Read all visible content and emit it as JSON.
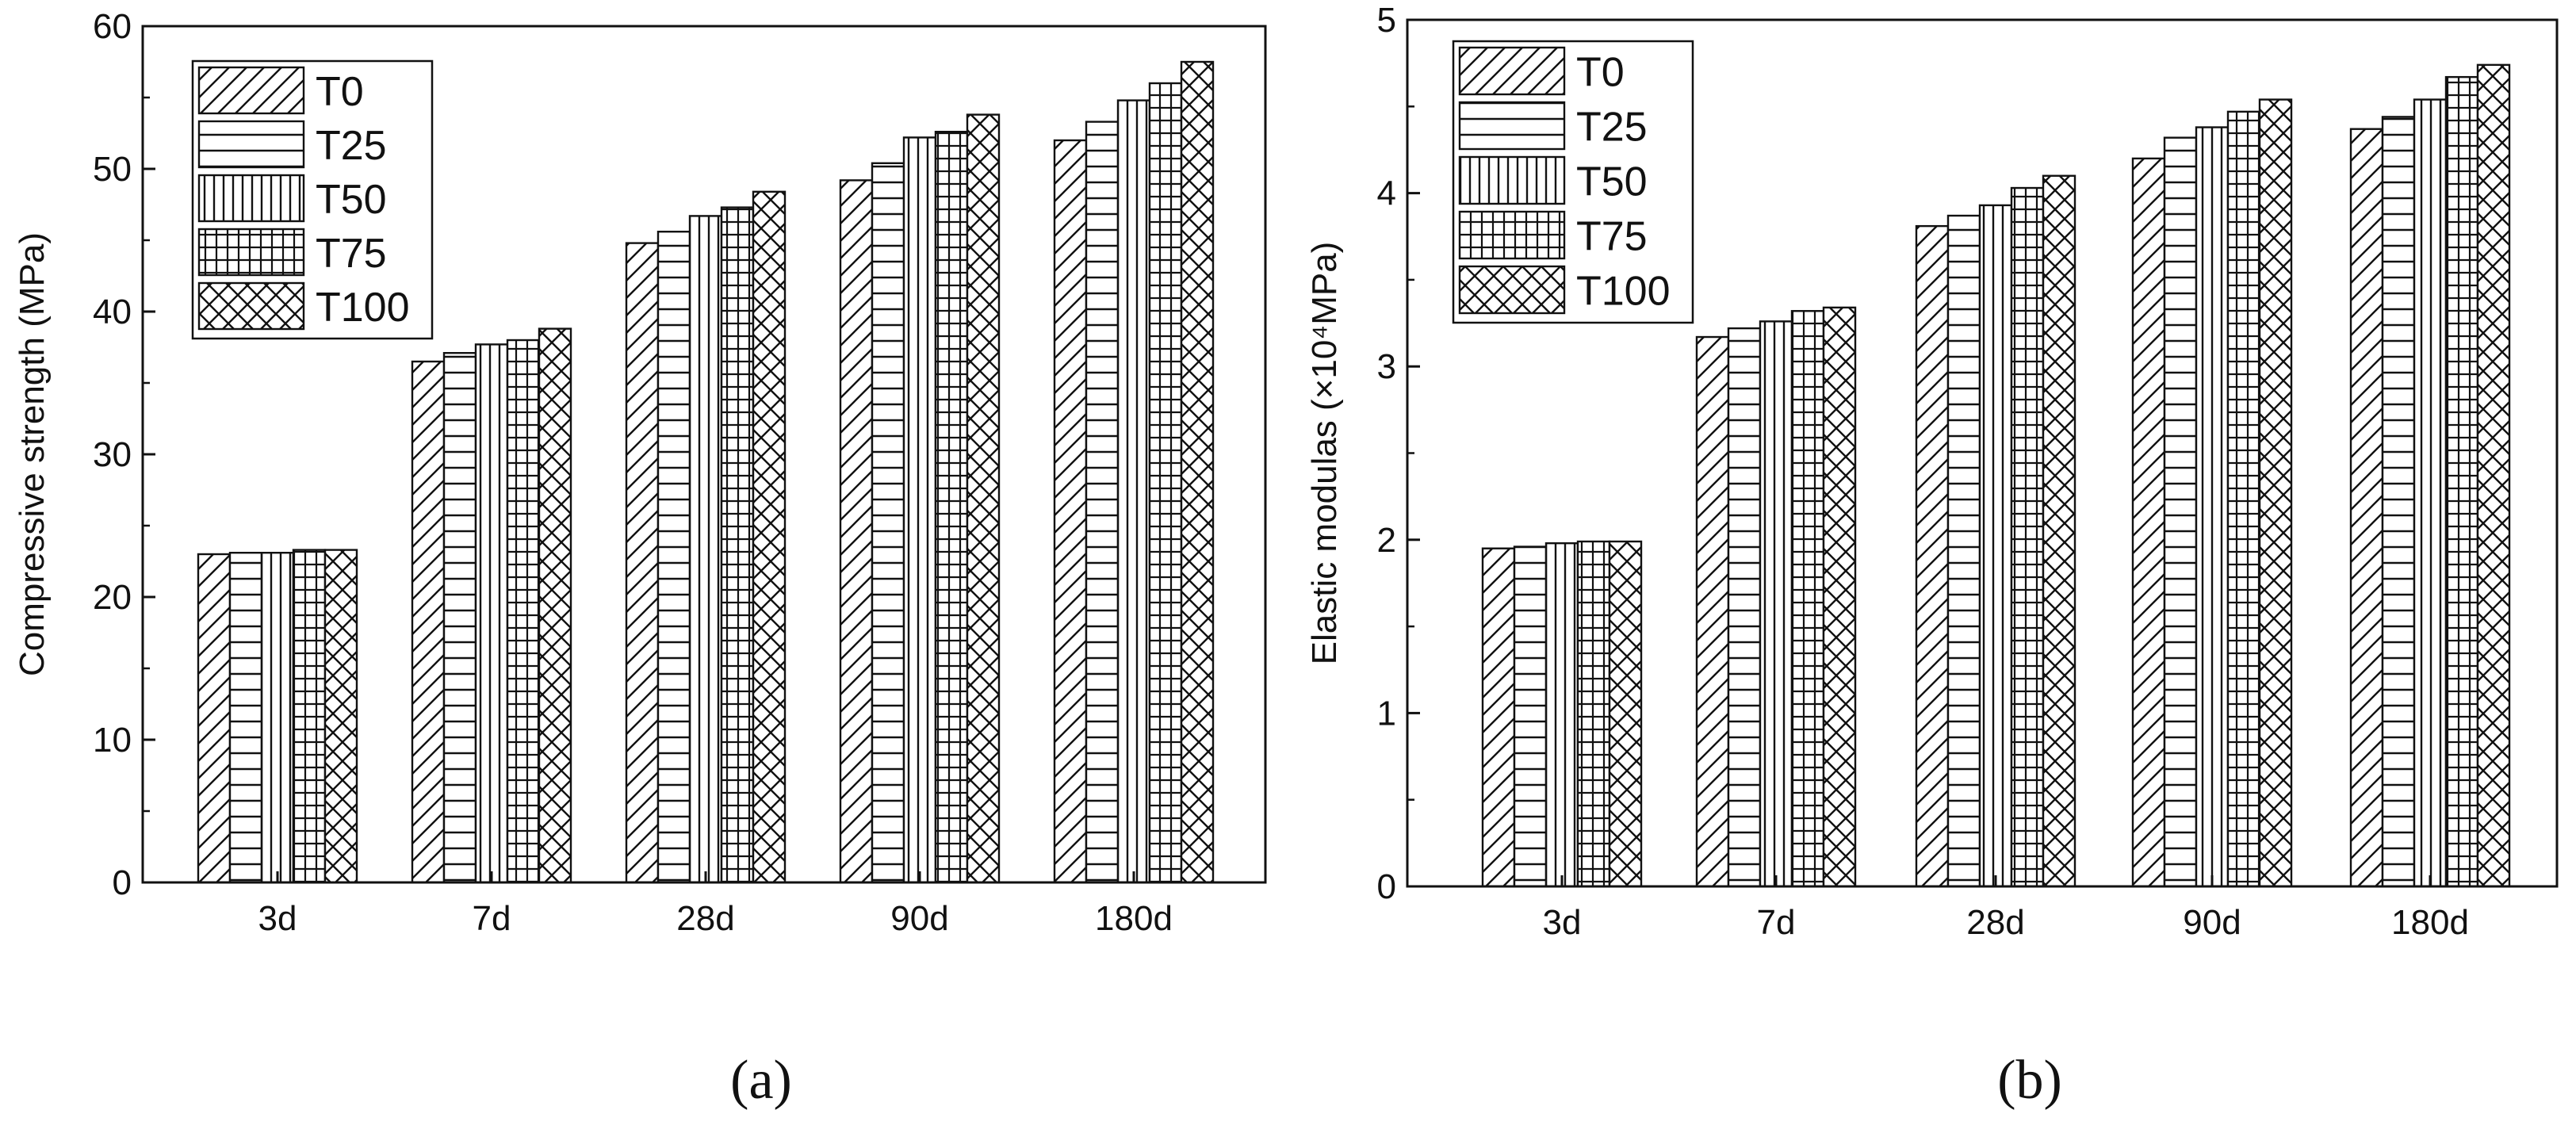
{
  "figure": {
    "panel_labels": [
      "(a)",
      "(b)"
    ]
  },
  "chart_data": [
    {
      "type": "bar",
      "panel": "(a)",
      "categories": [
        "3d",
        "7d",
        "28d",
        "90d",
        "180d"
      ],
      "series": [
        {
          "name": "T0",
          "pattern": "diagonal",
          "values": [
            23.0,
            36.5,
            44.8,
            49.2,
            52.0
          ]
        },
        {
          "name": "T25",
          "pattern": "horizontal",
          "values": [
            23.1,
            37.1,
            45.6,
            50.4,
            53.3
          ]
        },
        {
          "name": "T50",
          "pattern": "vertical",
          "values": [
            23.1,
            37.7,
            46.7,
            52.2,
            54.8
          ]
        },
        {
          "name": "T75",
          "pattern": "grid",
          "values": [
            23.3,
            38.0,
            47.3,
            52.6,
            56.0
          ]
        },
        {
          "name": "T100",
          "pattern": "crosshatch",
          "values": [
            23.3,
            38.8,
            48.4,
            53.8,
            57.5
          ]
        }
      ],
      "title": "",
      "xlabel": "",
      "ylabel": "Compressive strength (MPa)",
      "ylim": [
        0,
        60
      ],
      "yticks": [
        0,
        10,
        20,
        30,
        40,
        50,
        60
      ],
      "legend": "top-left",
      "grid": false
    },
    {
      "type": "bar",
      "panel": "(b)",
      "categories": [
        "3d",
        "7d",
        "28d",
        "90d",
        "180d"
      ],
      "series": [
        {
          "name": "T0",
          "pattern": "diagonal",
          "values": [
            1.95,
            3.17,
            3.81,
            4.2,
            4.37
          ]
        },
        {
          "name": "T25",
          "pattern": "horizontal",
          "values": [
            1.96,
            3.22,
            3.87,
            4.32,
            4.44
          ]
        },
        {
          "name": "T50",
          "pattern": "vertical",
          "values": [
            1.98,
            3.26,
            3.93,
            4.38,
            4.54
          ]
        },
        {
          "name": "T75",
          "pattern": "grid",
          "values": [
            1.99,
            3.32,
            4.03,
            4.47,
            4.67
          ]
        },
        {
          "name": "T100",
          "pattern": "crosshatch",
          "values": [
            1.99,
            3.34,
            4.1,
            4.54,
            4.74
          ]
        }
      ],
      "title": "",
      "xlabel": "",
      "ylabel": "Elastic modulas (×10⁴MPa)",
      "ylim": [
        0,
        5
      ],
      "yticks": [
        0,
        1,
        2,
        3,
        4,
        5
      ],
      "legend": "top-left",
      "grid": false
    }
  ]
}
